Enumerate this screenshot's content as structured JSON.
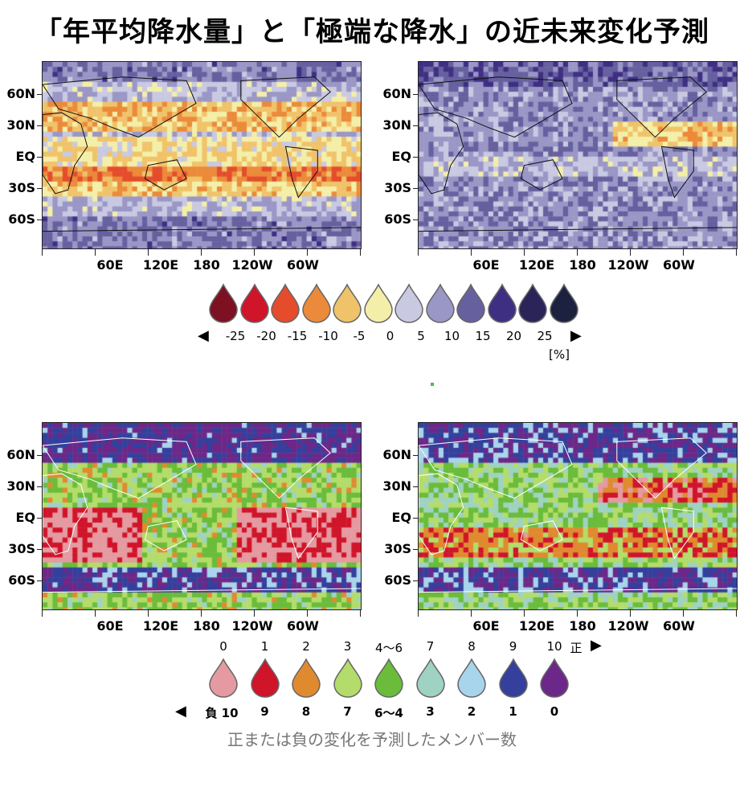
{
  "title": "「年平均降水量」と「極端な降水」の近未来変化予測",
  "lat_labels": [
    "60N",
    "30N",
    "EQ",
    "30S",
    "60S"
  ],
  "lon_labels": [
    "60E",
    "120E",
    "180",
    "120W",
    "60W"
  ],
  "top_legend": {
    "colors": [
      "#7d1021",
      "#d0142a",
      "#e44c2c",
      "#eb8a3a",
      "#f0c36a",
      "#f4efa8",
      "#c9c9e2",
      "#9a96c6",
      "#66609f",
      "#3f2f83",
      "#2b2459",
      "#1d2140"
    ],
    "labels": [
      "-25",
      "-20",
      "-15",
      "-10",
      "-5",
      "0",
      "5",
      "10",
      "15",
      "20",
      "25"
    ],
    "unit": "[%]"
  },
  "bottom_legend": {
    "colors": [
      "#e49aa0",
      "#d0142a",
      "#e08a30",
      "#b4dc6a",
      "#6abc3a",
      "#9fd2c2",
      "#a8d4ec",
      "#34409c",
      "#6c2888"
    ],
    "top_labels": [
      "0",
      "1",
      "2",
      "3",
      "4〜6",
      "7",
      "8",
      "9",
      "10"
    ],
    "top_end": "正",
    "bottom_labels": [
      "負 10",
      "9",
      "8",
      "7",
      "6〜4",
      "3",
      "2",
      "1",
      "0"
    ],
    "caption": "正または負の変化を予測したメンバー数"
  }
}
